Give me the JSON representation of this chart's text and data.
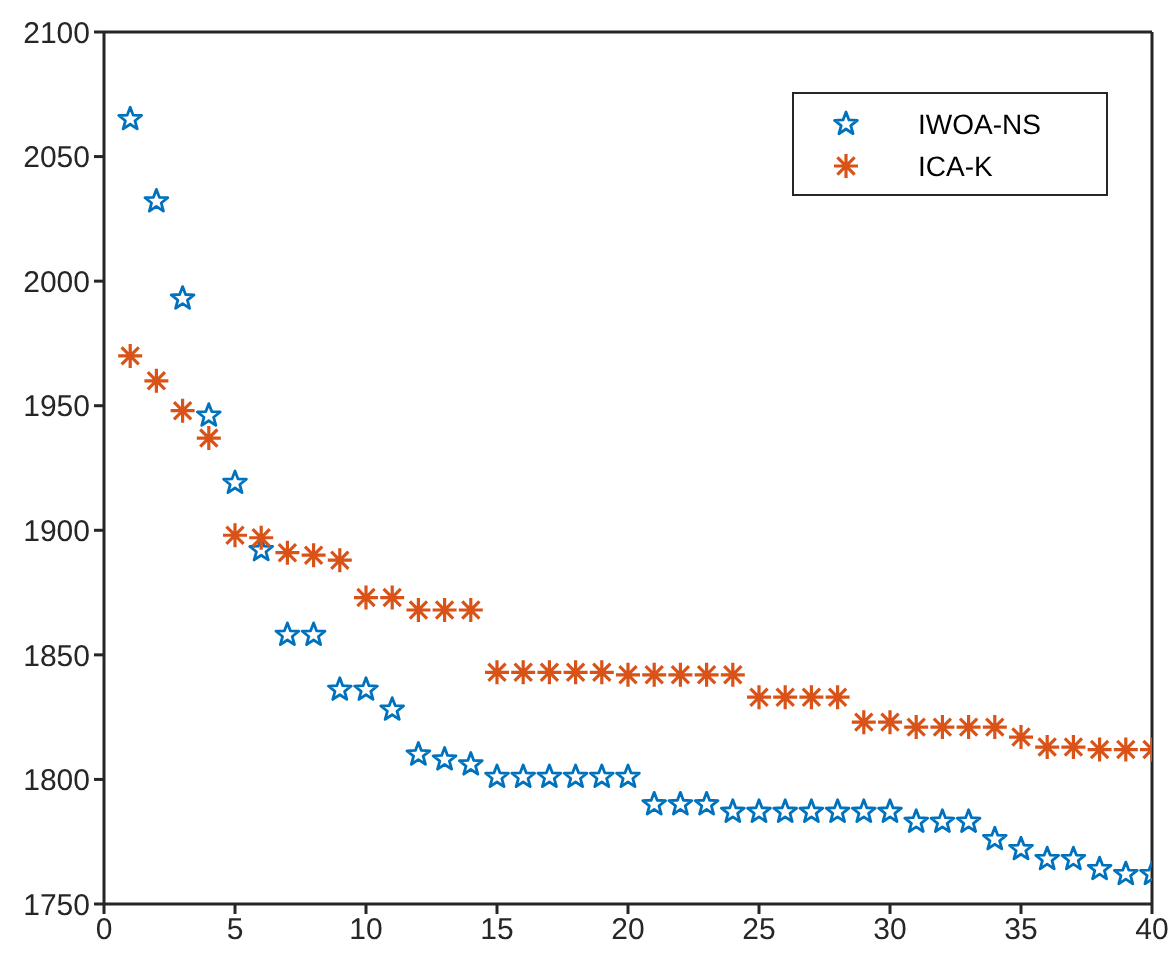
{
  "chart_data": {
    "type": "scatter",
    "x": [
      1,
      2,
      3,
      4,
      5,
      6,
      7,
      8,
      9,
      10,
      11,
      12,
      13,
      14,
      15,
      16,
      17,
      18,
      19,
      20,
      21,
      22,
      23,
      24,
      25,
      26,
      27,
      28,
      29,
      30,
      31,
      32,
      33,
      34,
      35,
      36,
      37,
      38,
      39,
      40
    ],
    "series": [
      {
        "name": "IWOA-NS",
        "color": "#0072bd",
        "marker": "star",
        "values": [
          2065,
          2032,
          1993,
          1946,
          1919,
          1892,
          1858,
          1858,
          1836,
          1836,
          1828,
          1810,
          1808,
          1806,
          1801,
          1801,
          1801,
          1801,
          1801,
          1801,
          1790,
          1790,
          1790,
          1787,
          1787,
          1787,
          1787,
          1787,
          1787,
          1787,
          1783,
          1783,
          1783,
          1776,
          1772,
          1768,
          1768,
          1764,
          1762,
          1762
        ]
      },
      {
        "name": "ICA-K",
        "color": "#d95319",
        "marker": "cross",
        "values": [
          1970,
          1960,
          1948,
          1937,
          1898,
          1897,
          1891,
          1890,
          1888,
          1873,
          1873,
          1868,
          1868,
          1868,
          1843,
          1843,
          1843,
          1843,
          1843,
          1842,
          1842,
          1842,
          1842,
          1842,
          1833,
          1833,
          1833,
          1833,
          1823,
          1823,
          1821,
          1821,
          1821,
          1821,
          1817,
          1813,
          1813,
          1812,
          1812,
          1812
        ]
      }
    ],
    "xlim": [
      0,
      40
    ],
    "xticks": [
      0,
      5,
      10,
      15,
      20,
      25,
      30,
      35,
      40
    ],
    "ylim": [
      1750,
      2100
    ],
    "yticks": [
      1750,
      1800,
      1850,
      1900,
      1950,
      2000,
      2050,
      2100
    ],
    "grid": false,
    "legend": "top right"
  }
}
